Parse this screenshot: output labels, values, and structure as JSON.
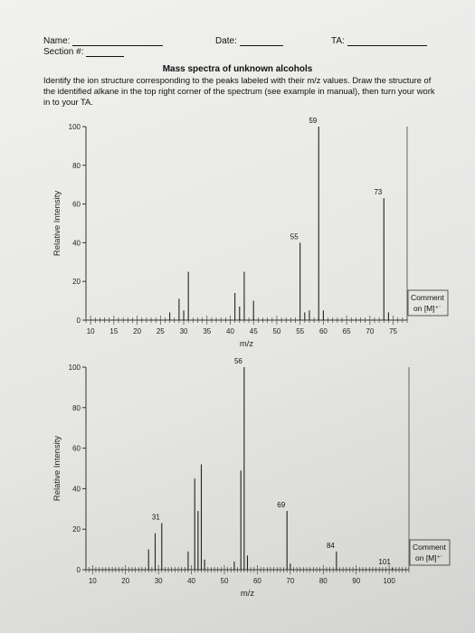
{
  "header": {
    "name_label": "Name:",
    "section_label": "Section #:",
    "date_label": "Date:",
    "ta_label": "TA:",
    "title": "Mass spectra of unknown alcohols",
    "instructions": "Identify the ion structure corresponding to the peaks labeled with their m/z values. Draw the structure of the identified alkane in the top right corner of the spectrum (see example in manual), then turn your work in to your TA."
  },
  "chart_data": [
    {
      "type": "bar",
      "xlabel": "m/z",
      "ylabel": "Relative Intensity",
      "xlim": [
        9,
        78
      ],
      "ylim": [
        0,
        100
      ],
      "xticks": [
        10,
        15,
        20,
        25,
        30,
        35,
        40,
        45,
        50,
        55,
        60,
        65,
        70,
        75
      ],
      "yticks": [
        0,
        20,
        40,
        60,
        80,
        100
      ],
      "comment_label": "Comment on [M]⁺˙",
      "peaks": [
        {
          "x": 27,
          "y": 4
        },
        {
          "x": 29,
          "y": 11
        },
        {
          "x": 30,
          "y": 5
        },
        {
          "x": 31,
          "y": 25
        },
        {
          "x": 41,
          "y": 14
        },
        {
          "x": 42,
          "y": 7
        },
        {
          "x": 43,
          "y": 25
        },
        {
          "x": 45,
          "y": 10
        },
        {
          "x": 55,
          "y": 40,
          "label": "55"
        },
        {
          "x": 56,
          "y": 4
        },
        {
          "x": 57,
          "y": 5
        },
        {
          "x": 59,
          "y": 100,
          "label": "59"
        },
        {
          "x": 60,
          "y": 5
        },
        {
          "x": 73,
          "y": 63,
          "label": "73"
        },
        {
          "x": 74,
          "y": 4
        }
      ]
    },
    {
      "type": "bar",
      "xlabel": "m/z",
      "ylabel": "Relative Intensity",
      "xlim": [
        8,
        106
      ],
      "ylim": [
        0,
        100
      ],
      "xticks": [
        10,
        20,
        30,
        40,
        50,
        60,
        70,
        80,
        90,
        100
      ],
      "yticks": [
        0,
        20,
        40,
        60,
        80,
        100
      ],
      "comment_label": "Comment on [M]⁺˙",
      "peaks": [
        {
          "x": 27,
          "y": 10
        },
        {
          "x": 29,
          "y": 18
        },
        {
          "x": 31,
          "y": 23,
          "label": "31"
        },
        {
          "x": 39,
          "y": 9
        },
        {
          "x": 41,
          "y": 45
        },
        {
          "x": 42,
          "y": 29
        },
        {
          "x": 43,
          "y": 52
        },
        {
          "x": 44,
          "y": 5
        },
        {
          "x": 53,
          "y": 4
        },
        {
          "x": 55,
          "y": 49
        },
        {
          "x": 56,
          "y": 100,
          "label": "56"
        },
        {
          "x": 57,
          "y": 7
        },
        {
          "x": 69,
          "y": 29,
          "label": "69"
        },
        {
          "x": 70,
          "y": 3
        },
        {
          "x": 84,
          "y": 9,
          "label": "84"
        },
        {
          "x": 101,
          "y": 1,
          "label": "101"
        }
      ]
    }
  ]
}
